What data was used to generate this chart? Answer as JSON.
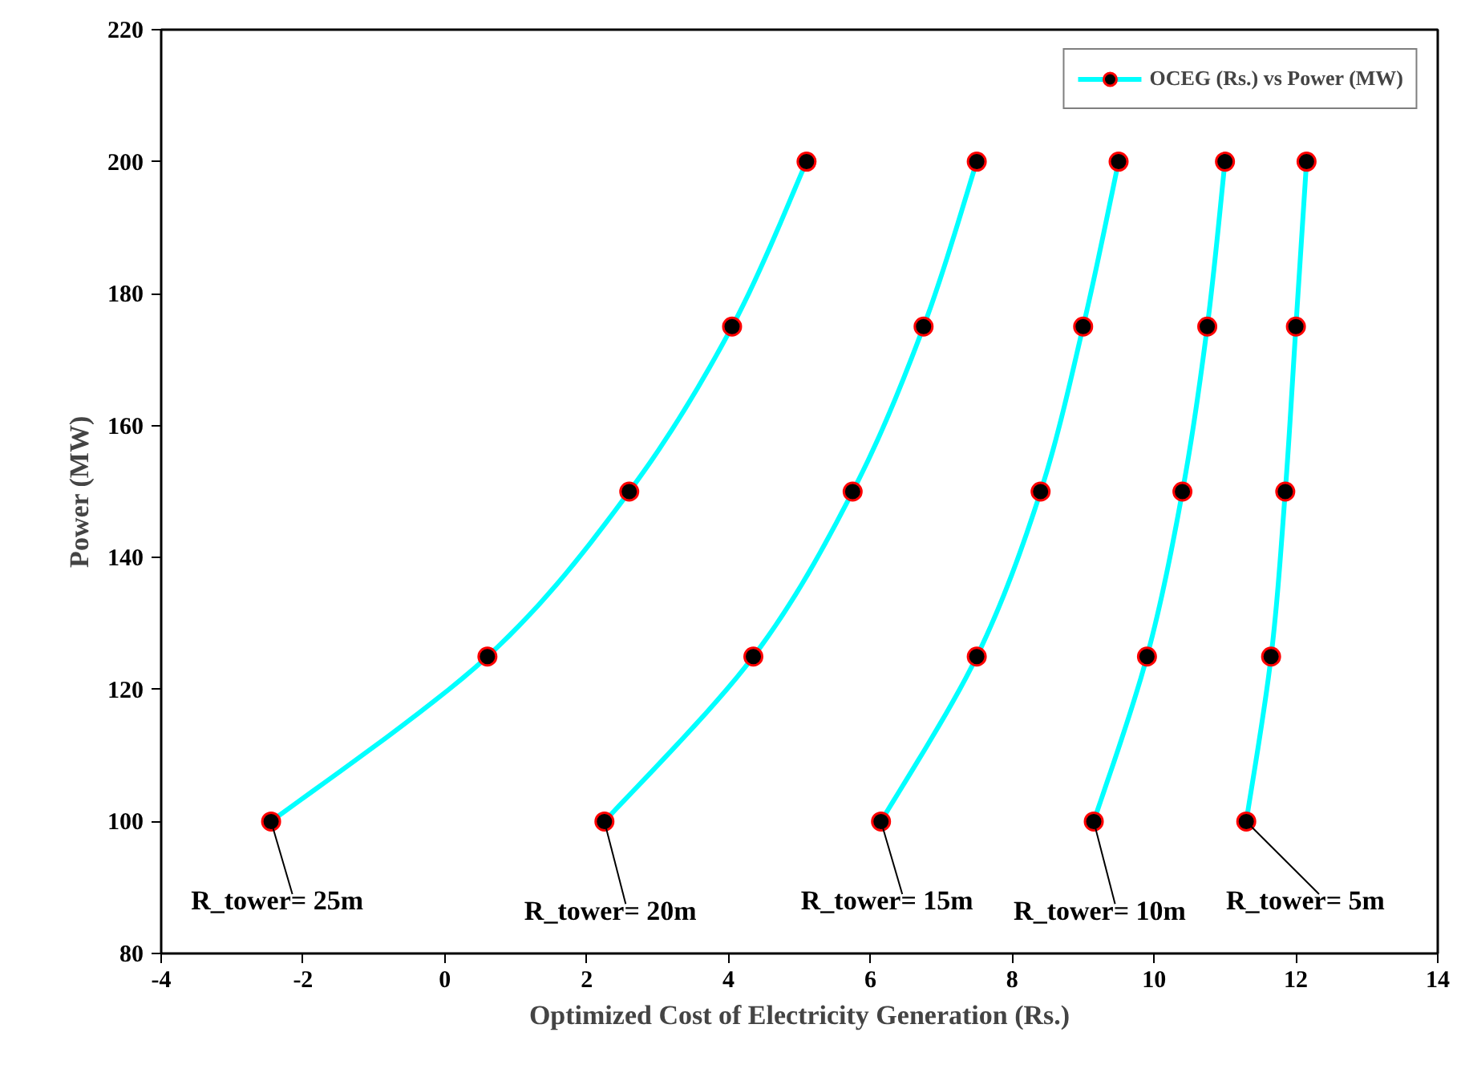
{
  "chart_data": {
    "type": "line",
    "xlabel": "Optimized Cost of Electricity Generation (Rs.)",
    "ylabel": "Power (MW)",
    "series": [
      {
        "name": "OCEG (Rs.) vs Power (MW)",
        "color": "#00ffff",
        "x": [
          -2.45,
          0.6,
          2.6,
          4.05,
          5.1
        ],
        "values": [
          100,
          125,
          150,
          175,
          200
        ]
      },
      {
        "color": "#00ffff",
        "x": [
          2.25,
          4.35,
          5.75,
          6.75,
          7.5
        ],
        "values": [
          100,
          125,
          150,
          175,
          200
        ]
      },
      {
        "color": "#00ffff",
        "x": [
          6.15,
          7.5,
          8.4,
          9.0,
          9.5
        ],
        "values": [
          100,
          125,
          150,
          175,
          200
        ]
      },
      {
        "color": "#00ffff",
        "x": [
          9.15,
          9.9,
          10.4,
          10.75,
          11.0
        ],
        "values": [
          100,
          125,
          150,
          175,
          200
        ]
      },
      {
        "color": "#00ffff",
        "x": [
          11.3,
          11.65,
          11.85,
          12.0,
          12.15
        ],
        "values": [
          100,
          125,
          150,
          175,
          200
        ]
      }
    ],
    "annotations": [
      {
        "text": "R_tower= 25m",
        "x": -2.45,
        "y": 100
      },
      {
        "text": "R_tower= 20m",
        "x": 2.25,
        "y": 100
      },
      {
        "text": "R_tower= 15m",
        "x": 6.15,
        "y": 100
      },
      {
        "text": "R_tower= 10m",
        "x": 9.15,
        "y": 100
      },
      {
        "text": "R_tower= 5m",
        "x": 11.3,
        "y": 100
      }
    ],
    "xlim": [
      -4,
      14
    ],
    "xticks": [
      -4,
      -2,
      0,
      2,
      4,
      6,
      8,
      10,
      12,
      14
    ],
    "ylim": [
      80,
      220
    ],
    "yticks": [
      80,
      100,
      120,
      140,
      160,
      180,
      200,
      220
    ],
    "marker": "circle",
    "line_style": "solid",
    "grid": false,
    "legend": "top right"
  }
}
